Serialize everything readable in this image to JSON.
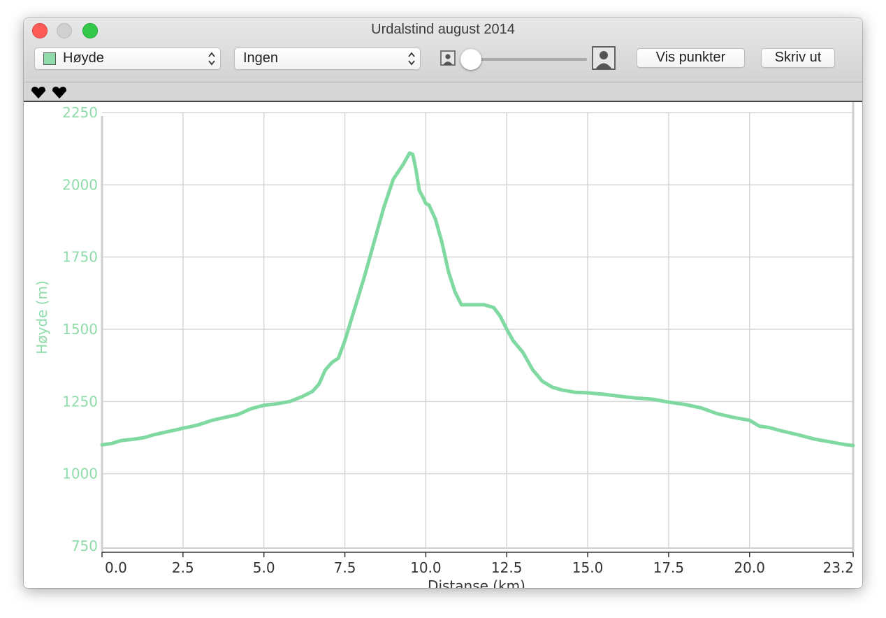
{
  "window": {
    "title": "Urdalstind august 2014"
  },
  "toolbar": {
    "metric_popup": {
      "selected": "Høyde",
      "swatch_color": "#8fdcaa"
    },
    "overlay_popup": {
      "selected": "Ingen"
    },
    "zoom_slider": {
      "value": 0.0
    },
    "vis_punkter_label": "Vis punkter",
    "skriv_ut_label": "Skriv ut"
  },
  "markers": {
    "count": 2,
    "color": "#000000"
  },
  "chart_data": {
    "type": "line",
    "xlabel": "Distanse (km)",
    "ylabel": "Høyde (m)",
    "xlim": [
      0,
      23.2
    ],
    "ylim": [
      750,
      2250
    ],
    "x_ticks": [
      0,
      2.5,
      5,
      7.5,
      10,
      12.5,
      15,
      17.5,
      20,
      23.2
    ],
    "x_tick_labels": [
      "0.0",
      "2.5",
      "5.0",
      "7.5",
      "10.0",
      "12.5",
      "15.0",
      "17.5",
      "20.0",
      "23.2"
    ],
    "y_ticks": [
      750,
      1000,
      1250,
      1500,
      1750,
      2000,
      2250
    ],
    "y_tick_labels": [
      "750",
      "1000",
      "1250",
      "1500",
      "1750",
      "2000",
      "2250"
    ],
    "grid": true,
    "line_color": "#7fd9a0",
    "axis_label_color": "#8fdcaa",
    "series": [
      {
        "x": [
          0,
          0.3,
          0.6,
          1.0,
          1.3,
          1.6,
          2.0,
          2.3,
          2.5,
          2.7,
          3.0,
          3.4,
          3.8,
          4.2,
          4.6,
          5.0,
          5.4,
          5.8,
          6.2,
          6.5,
          6.7,
          6.9,
          7.1,
          7.3,
          7.5,
          7.8,
          8.1,
          8.4,
          8.7,
          9.0,
          9.3,
          9.5,
          9.6,
          9.7,
          9.8,
          9.9,
          10.0,
          10.1,
          10.3,
          10.5,
          10.7,
          10.9,
          11.1,
          11.3,
          11.5,
          11.8,
          12.1,
          12.3,
          12.5,
          12.7,
          13.0,
          13.3,
          13.6,
          13.9,
          14.2,
          14.6,
          15.0,
          15.5,
          16.0,
          16.5,
          17.0,
          17.5,
          18.0,
          18.5,
          19.0,
          19.5,
          20.0,
          20.3,
          20.6,
          21.0,
          21.5,
          22.0,
          22.5,
          23.0,
          23.2
        ],
        "y": [
          1100,
          1105,
          1115,
          1120,
          1125,
          1135,
          1145,
          1152,
          1158,
          1162,
          1170,
          1185,
          1195,
          1205,
          1225,
          1237,
          1242,
          1250,
          1268,
          1285,
          1310,
          1360,
          1385,
          1400,
          1460,
          1570,
          1680,
          1800,
          1920,
          2020,
          2070,
          2110,
          2105,
          2050,
          1980,
          1960,
          1935,
          1930,
          1880,
          1800,
          1700,
          1630,
          1585,
          1585,
          1585,
          1585,
          1575,
          1545,
          1500,
          1460,
          1420,
          1360,
          1320,
          1300,
          1290,
          1282,
          1280,
          1275,
          1268,
          1262,
          1258,
          1248,
          1240,
          1228,
          1208,
          1195,
          1185,
          1165,
          1160,
          1148,
          1135,
          1120,
          1110,
          1100,
          1098
        ]
      }
    ]
  }
}
